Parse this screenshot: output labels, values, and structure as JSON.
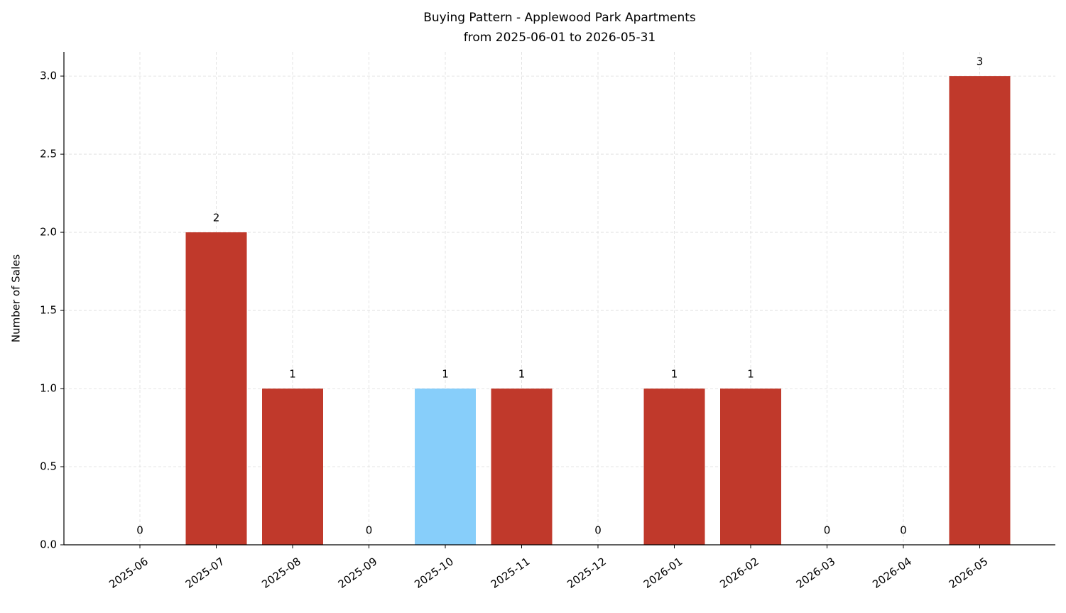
{
  "chart_data": {
    "type": "bar",
    "title": "Buying Pattern - Applewood Park Apartments",
    "subtitle": "from 2025-06-01 to 2026-05-31",
    "y_label": "Number of Sales",
    "categories": [
      "2025-06",
      "2025-07",
      "2025-08",
      "2025-09",
      "2025-10",
      "2025-11",
      "2025-12",
      "2026-01",
      "2026-02",
      "2026-03",
      "2026-04",
      "2026-05"
    ],
    "values": [
      0,
      2,
      1,
      0,
      1,
      1,
      0,
      1,
      1,
      0,
      0,
      3
    ],
    "colors": [
      "#c0392b",
      "#c0392b",
      "#c0392b",
      "#c0392b",
      "#87cefa",
      "#c0392b",
      "#c0392b",
      "#c0392b",
      "#c0392b",
      "#c0392b",
      "#c0392b",
      "#c0392b"
    ],
    "ylim": [
      0,
      3.155
    ],
    "yticks": [
      {
        "value": 0,
        "label": "0.0"
      },
      {
        "value": 0.5,
        "label": "0.5"
      },
      {
        "value": 1,
        "label": "1.0"
      },
      {
        "value": 1.5,
        "label": "1.5"
      },
      {
        "value": 2,
        "label": "2.0"
      },
      {
        "value": 2.5,
        "label": "2.5"
      },
      {
        "value": 3,
        "label": "3.0"
      }
    ],
    "grid": true
  }
}
